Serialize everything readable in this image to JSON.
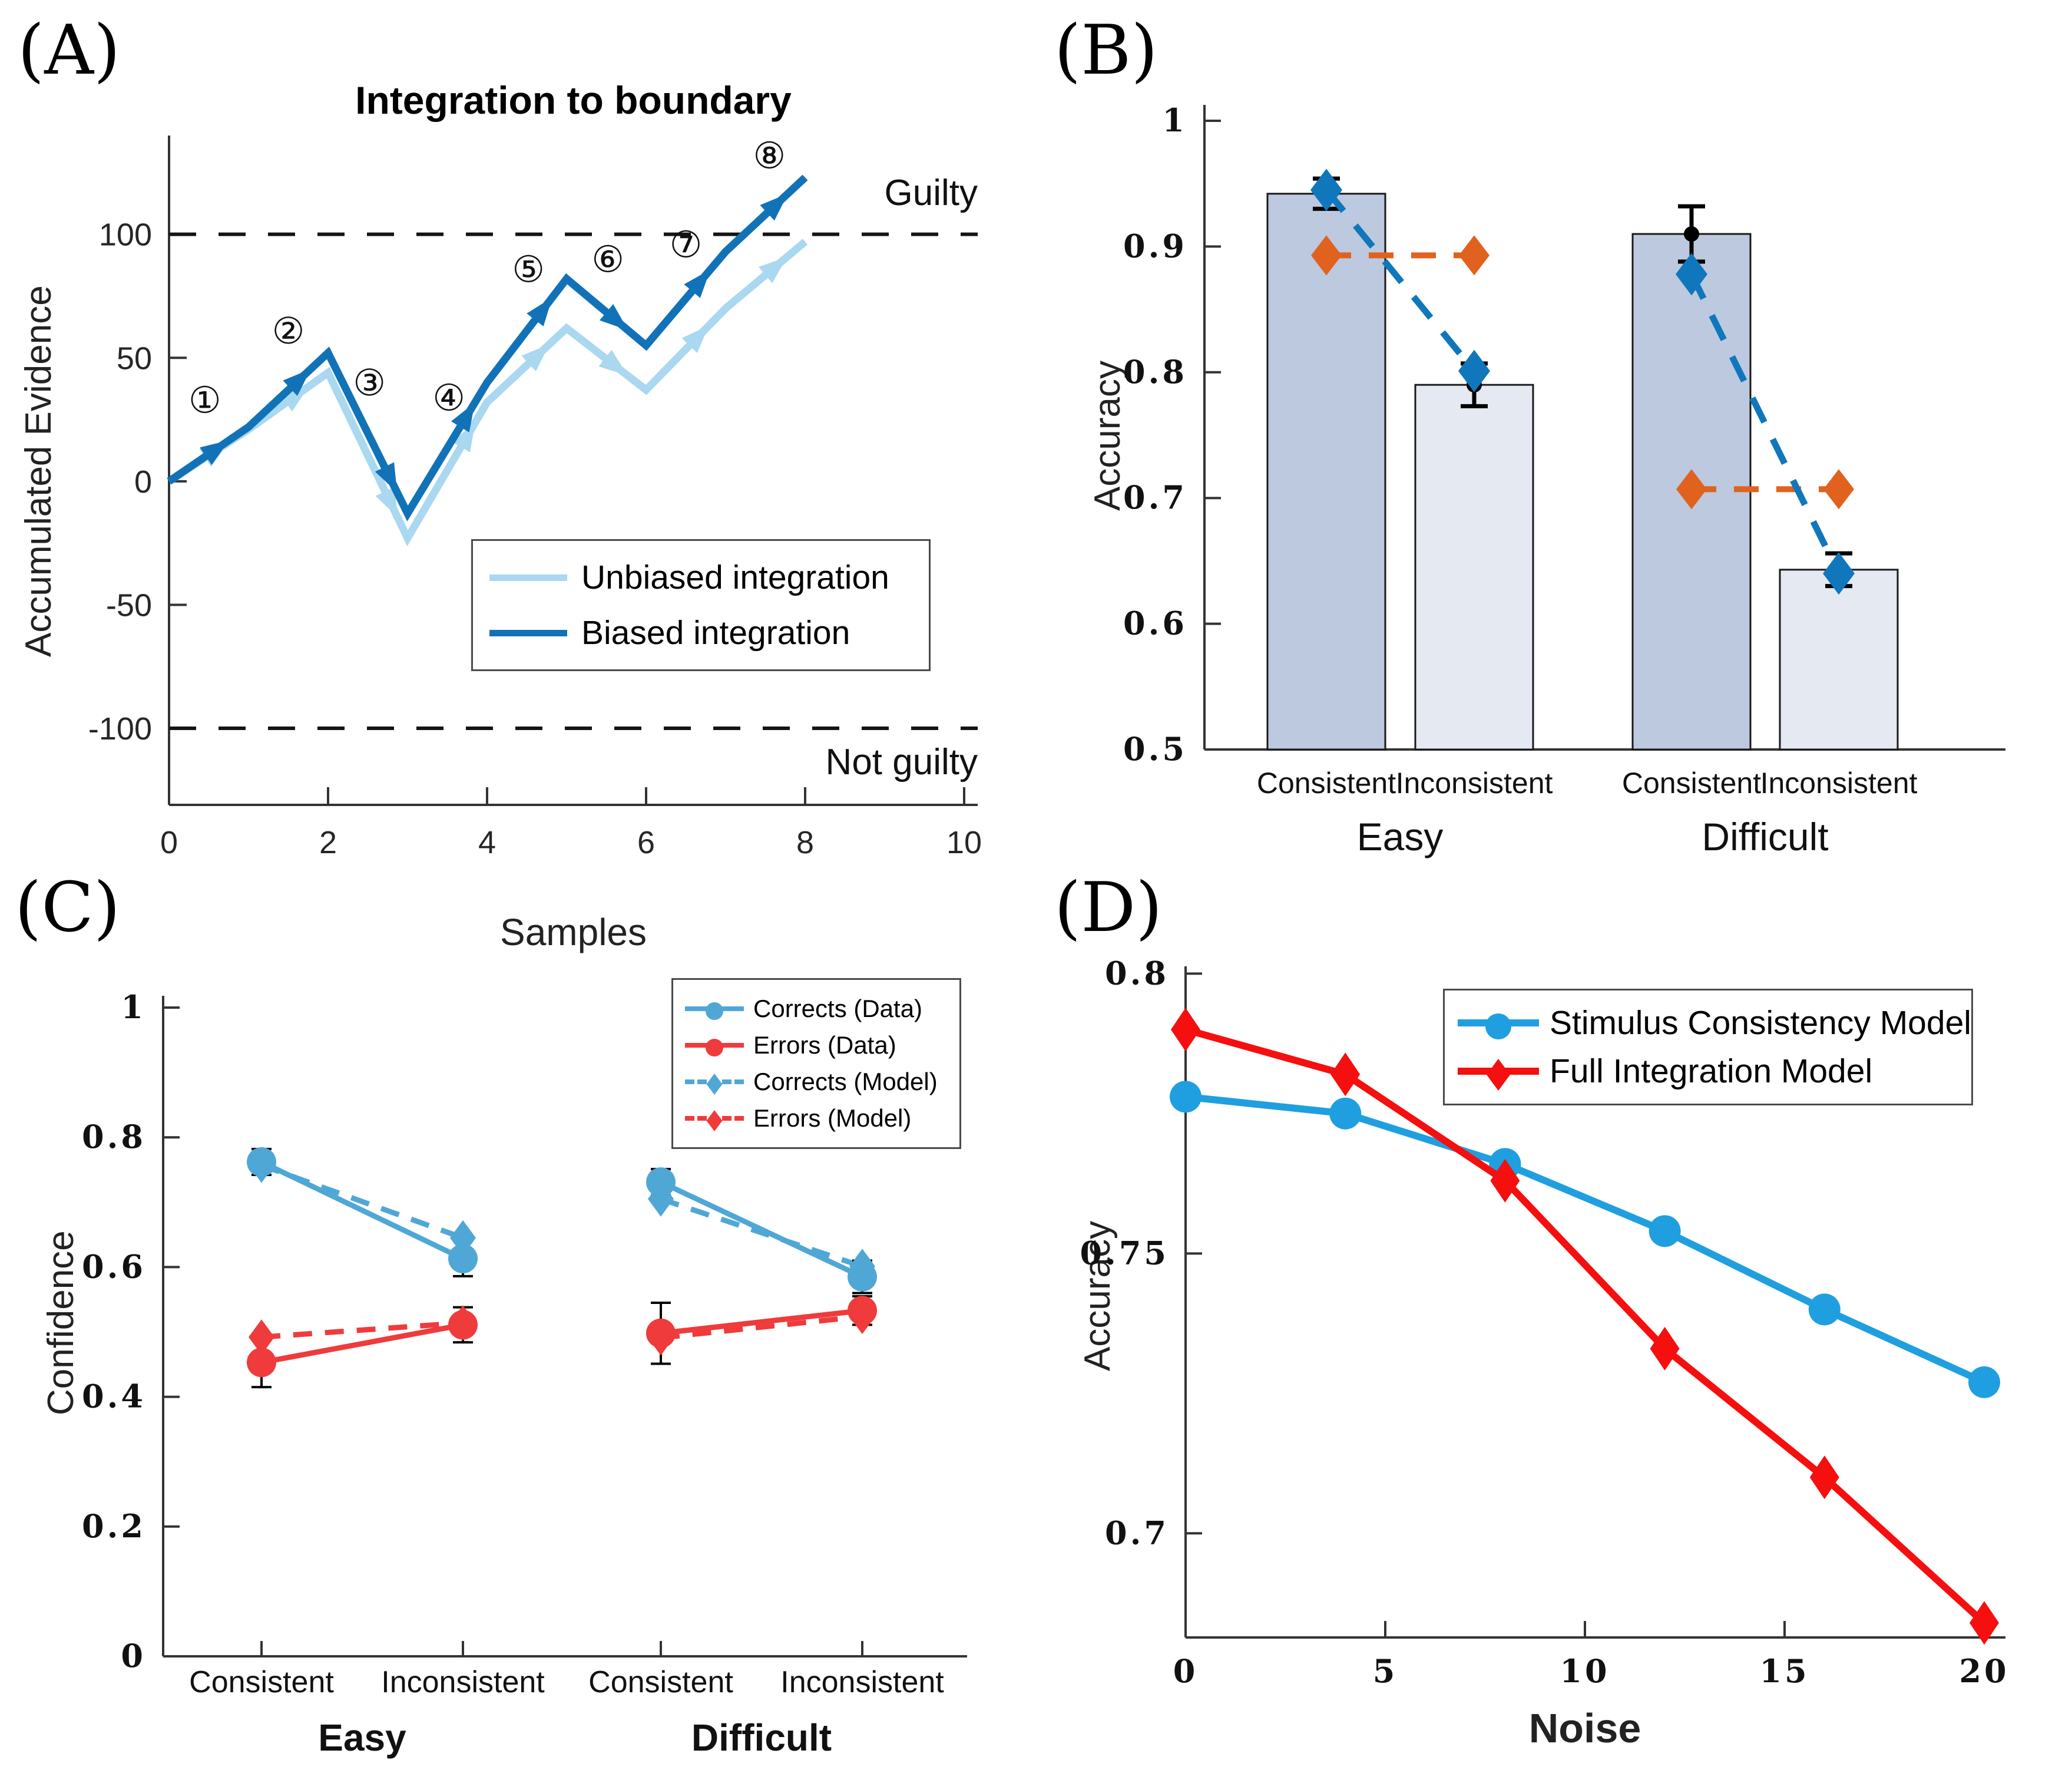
{
  "panel_labels": [
    "(A)",
    "(B)",
    "(C)",
    "(D)"
  ],
  "chart_data": [
    {
      "panel": "A",
      "type": "line",
      "title": "Integration to boundary",
      "xlabel": "Samples",
      "ylabel": "Accumulated Evidence",
      "xlim": [
        0,
        10
      ],
      "ylim": [
        -131,
        140
      ],
      "xticks": [
        0,
        2,
        4,
        6,
        8,
        10
      ],
      "yticks": [
        -100,
        -50,
        0,
        50,
        100
      ],
      "upper_boundary": {
        "y": 100,
        "label": "Guilty"
      },
      "lower_boundary": {
        "y": -100,
        "label": "Not guilty"
      },
      "x": [
        0,
        1,
        2,
        3,
        4,
        5,
        6,
        7,
        8
      ],
      "series": [
        {
          "name": "Unbiased integration",
          "color": "#A9D8F0",
          "values": [
            0,
            21,
            44,
            -23,
            32,
            62,
            37,
            70,
            97
          ]
        },
        {
          "name": "Biased integration",
          "color": "#1172B8",
          "values": [
            0,
            22,
            52,
            -13,
            40,
            82,
            55,
            93,
            123
          ]
        }
      ],
      "step_labels": [
        {
          "text": "①",
          "x": 0.45,
          "y": 33
        },
        {
          "text": "②",
          "x": 1.5,
          "y": 61
        },
        {
          "text": "③",
          "x": 2.52,
          "y": 40
        },
        {
          "text": "④",
          "x": 3.52,
          "y": 34
        },
        {
          "text": "⑤",
          "x": 4.52,
          "y": 86
        },
        {
          "text": "⑥",
          "x": 5.52,
          "y": 90
        },
        {
          "text": "⑦",
          "x": 6.5,
          "y": 96
        },
        {
          "text": "⑧",
          "x": 7.55,
          "y": 132
        }
      ]
    },
    {
      "panel": "B",
      "type": "bar",
      "ylabel": "Accuracy",
      "ylim": [
        0.5,
        1.0
      ],
      "yticks": [
        0.5,
        0.6,
        0.7,
        0.8,
        0.9,
        1
      ],
      "categories": [
        "Consistent",
        "Inconsistent",
        "Consistent",
        "Inconsistent"
      ],
      "groups": [
        "Easy",
        "Difficult"
      ],
      "bar_values": [
        0.942,
        0.79,
        0.91,
        0.643
      ],
      "bar_errors": [
        0.012,
        0.017,
        0.022,
        0.013
      ],
      "bar_colors": [
        "#BCC9DF",
        "#E4E9F2",
        "#BCC9DF",
        "#E4E9F2"
      ],
      "consistency_model": {
        "color": "#1077BC",
        "values": [
          0.945,
          0.801,
          0.878,
          0.64
        ]
      },
      "integration_model": {
        "color": "#E0621E",
        "values": [
          0.893,
          0.893,
          0.707,
          0.707
        ]
      }
    },
    {
      "panel": "C",
      "type": "line",
      "ylabel": "Confidence",
      "ylim": [
        0,
        1.06
      ],
      "yticks": [
        0,
        0.2,
        0.4,
        0.6,
        0.8,
        1
      ],
      "categories": [
        "Consistent",
        "Inconsistent",
        "Consistent",
        "Inconsistent"
      ],
      "groups": [
        "Easy",
        "Difficult"
      ],
      "series": [
        {
          "name": "Corrects (Data)",
          "line": "solid",
          "marker": "circle",
          "color": "#4FA7D6",
          "values": [
            0.762,
            0.613,
            0.731,
            0.585
          ],
          "errors": [
            0.02,
            0.027,
            0.02,
            0.025
          ]
        },
        {
          "name": "Errors (Data)",
          "line": "solid",
          "marker": "circle",
          "color": "#EF3B3B",
          "values": [
            0.453,
            0.511,
            0.498,
            0.533
          ],
          "errors": [
            0.038,
            0.027,
            0.047,
            0.022
          ]
        },
        {
          "name": "Corrects (Model)",
          "line": "dashed",
          "marker": "diamond",
          "color": "#4FA7D6",
          "values": [
            0.757,
            0.645,
            0.705,
            0.601
          ]
        },
        {
          "name": "Errors (Model)",
          "line": "dashed",
          "marker": "diamond",
          "color": "#EF3B3B",
          "values": [
            0.492,
            0.514,
            0.491,
            0.524
          ]
        }
      ]
    },
    {
      "panel": "D",
      "type": "line",
      "xlabel": "Noise",
      "ylabel": "Accuracy",
      "xlim": [
        0,
        20
      ],
      "ylim": [
        0.6814,
        0.8013
      ],
      "yticks": [
        0.7,
        0.75,
        0.8
      ],
      "xticks": [
        0,
        5,
        10,
        15,
        20
      ],
      "x": [
        0,
        4,
        8,
        12,
        16,
        20
      ],
      "series": [
        {
          "name": "Stimulus Consistency Model",
          "marker": "circle",
          "color": "#1F9FDF",
          "values": [
            0.778,
            0.775,
            0.766,
            0.754,
            0.74,
            0.727
          ]
        },
        {
          "name": "Full Integration Model",
          "marker": "diamond",
          "color": "#F50F0F",
          "values": [
            0.79,
            0.782,
            0.763,
            0.733,
            0.71,
            0.684
          ]
        }
      ]
    }
  ]
}
